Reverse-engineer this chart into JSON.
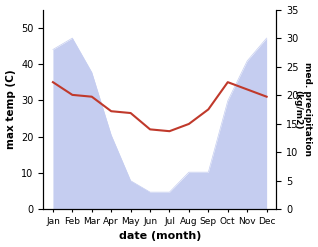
{
  "months": [
    "Jan",
    "Feb",
    "Mar",
    "Apr",
    "May",
    "Jun",
    "Jul",
    "Aug",
    "Sep",
    "Oct",
    "Nov",
    "Dec"
  ],
  "month_positions": [
    1,
    2,
    3,
    4,
    5,
    6,
    7,
    8,
    9,
    10,
    11,
    12
  ],
  "temperature": [
    35,
    31.5,
    31,
    27,
    26.5,
    22,
    21.5,
    23.5,
    27.5,
    35,
    33,
    31
  ],
  "precipitation": [
    28,
    30,
    24,
    13,
    5,
    3,
    3,
    6.5,
    6.5,
    19,
    26,
    30
  ],
  "temp_color": "#c0392b",
  "precip_fill_color": "#c5cdf0",
  "xlabel": "date (month)",
  "ylabel_left": "max temp (C)",
  "ylabel_right": "med. precipitation\n(kg/m2)",
  "ylim_left": [
    0,
    55
  ],
  "ylim_right": [
    0,
    35
  ],
  "yticks_left": [
    0,
    10,
    20,
    30,
    40,
    50
  ],
  "yticks_right": [
    0,
    5,
    10,
    15,
    20,
    25,
    30,
    35
  ],
  "background_color": "#ffffff"
}
